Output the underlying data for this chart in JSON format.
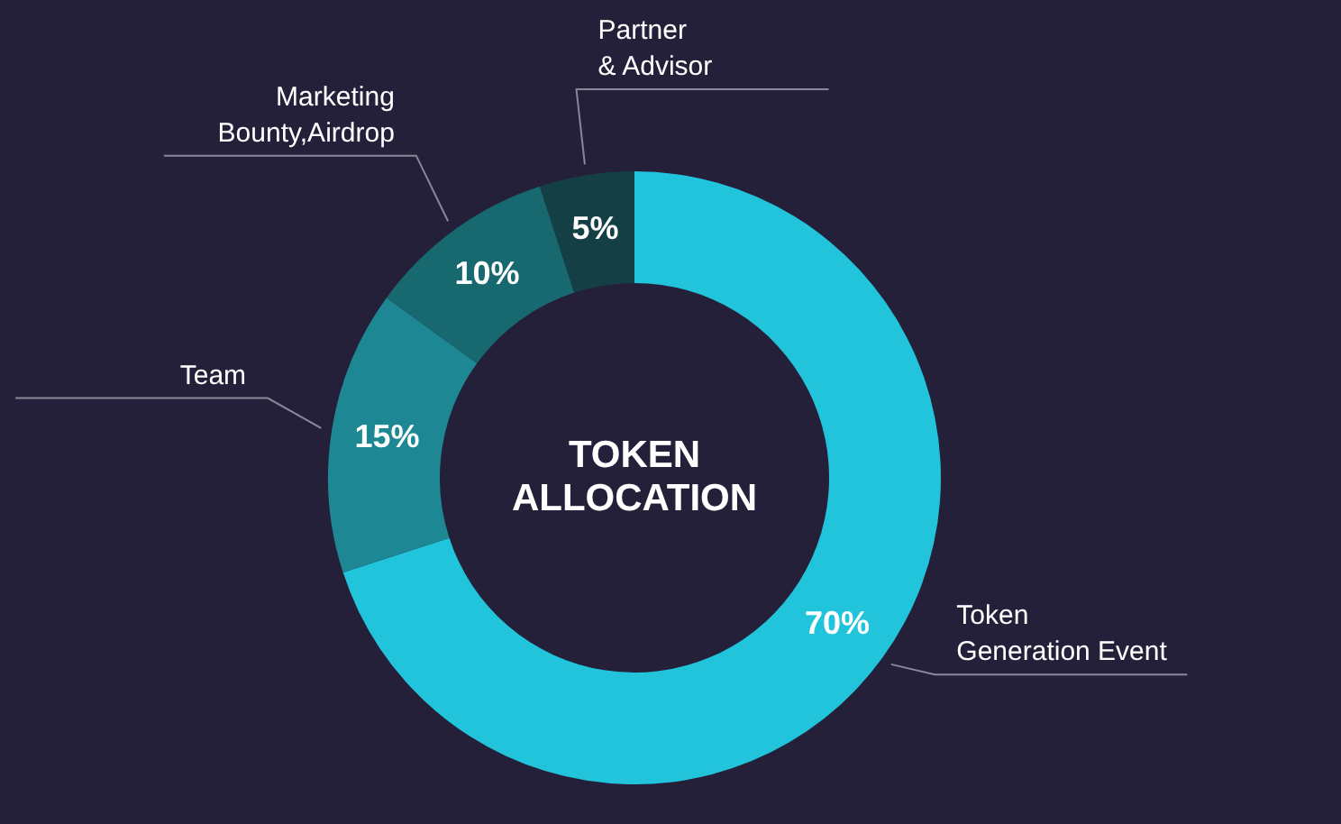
{
  "chart_data": {
    "type": "donut",
    "title": "TOKEN\nALLOCATION",
    "categories": [
      "Token\nGeneration Event",
      "Team",
      "Marketing\nBounty,Airdrop",
      "Partner\n& Advisor"
    ],
    "values": [
      70,
      15,
      10,
      5
    ],
    "colors": [
      "#22c4dc",
      "#1d8894",
      "#186870",
      "#133f45"
    ],
    "value_labels": [
      "70%",
      "15%",
      "10%",
      "5%"
    ]
  }
}
